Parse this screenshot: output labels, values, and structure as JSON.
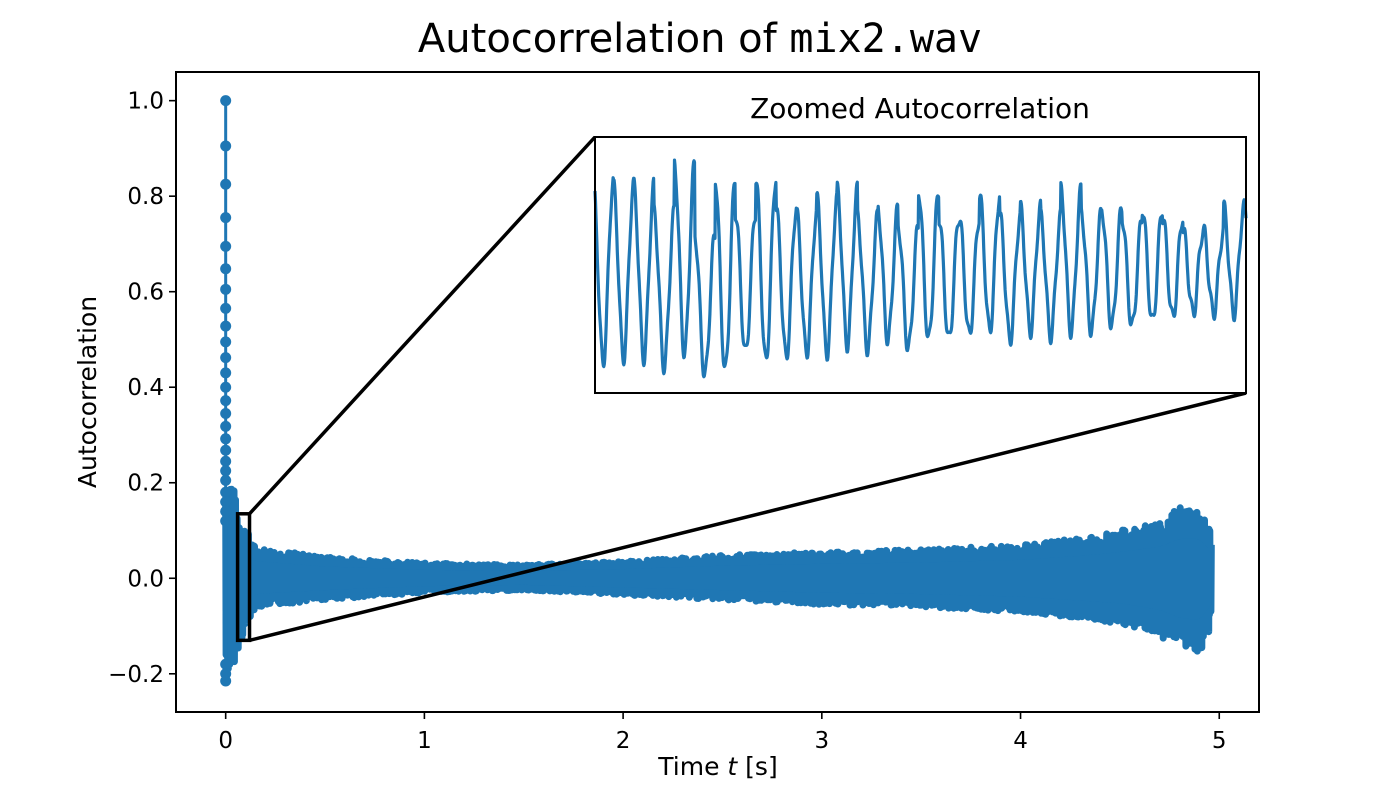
{
  "colors": {
    "series": "#1f77b4",
    "axis": "#000000",
    "background": "#ffffff"
  },
  "chart_data": [
    {
      "type": "line",
      "title_prefix": "Autocorrelation of ",
      "title_code": "mix2.wav",
      "xlabel_prefix": "Time ",
      "xlabel_var": "t",
      "xlabel_suffix": " [s]",
      "ylabel": "Autocorrelation",
      "xlim": [
        -0.25,
        5.2
      ],
      "ylim": [
        -0.28,
        1.06
      ],
      "xticks": [
        0,
        1,
        2,
        3,
        4,
        5
      ],
      "xtick_labels": [
        "0",
        "1",
        "2",
        "3",
        "4",
        "5"
      ],
      "yticks": [
        -0.2,
        0.0,
        0.2,
        0.4,
        0.6,
        0.8,
        1.0
      ],
      "ytick_labels": [
        "−0.2",
        "0.0",
        "0.2",
        "0.4",
        "0.6",
        "0.8",
        "1.0"
      ],
      "grid": false,
      "legend": "none",
      "marker": "circle",
      "series": [
        {
          "peak_points": [
            [
              0.0,
              1.0
            ],
            [
              0.0,
              0.905
            ],
            [
              0.0,
              0.825
            ],
            [
              0.0,
              0.755
            ],
            [
              0.0,
              0.695
            ],
            [
              0.0,
              0.648
            ],
            [
              0.0,
              0.605
            ],
            [
              0.0,
              0.565
            ],
            [
              0.0,
              0.528
            ],
            [
              0.0,
              0.495
            ],
            [
              0.0,
              0.462
            ],
            [
              0.0,
              0.43
            ],
            [
              0.0,
              0.4
            ],
            [
              0.0,
              0.372
            ],
            [
              0.0,
              0.345
            ],
            [
              0.0,
              0.318
            ],
            [
              0.0,
              0.292
            ],
            [
              0.0,
              0.268
            ],
            [
              0.0,
              0.245
            ],
            [
              0.0,
              0.225
            ],
            [
              0.0,
              0.205
            ],
            [
              0.0,
              0.18
            ],
            [
              0.0,
              0.16
            ],
            [
              0.0,
              0.14
            ],
            [
              0.0,
              0.12
            ],
            [
              0.0,
              -0.18
            ],
            [
              0.0,
              -0.2
            ],
            [
              0.0,
              -0.215
            ]
          ],
          "envelope": [
            {
              "t": 0.03,
              "hi": 0.22,
              "lo": -0.2
            },
            {
              "t": 0.06,
              "hi": 0.14,
              "lo": -0.15
            },
            {
              "t": 0.15,
              "hi": 0.065,
              "lo": -0.06
            },
            {
              "t": 0.5,
              "hi": 0.045,
              "lo": -0.045
            },
            {
              "t": 1.0,
              "hi": 0.032,
              "lo": -0.03
            },
            {
              "t": 1.5,
              "hi": 0.028,
              "lo": -0.025
            },
            {
              "t": 2.0,
              "hi": 0.035,
              "lo": -0.035
            },
            {
              "t": 2.5,
              "hi": 0.048,
              "lo": -0.045
            },
            {
              "t": 3.0,
              "hi": 0.055,
              "lo": -0.055
            },
            {
              "t": 3.5,
              "hi": 0.06,
              "lo": -0.06
            },
            {
              "t": 4.0,
              "hi": 0.07,
              "lo": -0.07
            },
            {
              "t": 4.3,
              "hi": 0.085,
              "lo": -0.085
            },
            {
              "t": 4.5,
              "hi": 0.1,
              "lo": -0.095
            },
            {
              "t": 4.7,
              "hi": 0.12,
              "lo": -0.12
            },
            {
              "t": 4.8,
              "hi": 0.15,
              "lo": -0.15
            },
            {
              "t": 4.9,
              "hi": 0.15,
              "lo": -0.16
            },
            {
              "t": 4.96,
              "hi": 0.1,
              "lo": -0.1
            }
          ]
        }
      ],
      "zoom_region": {
        "x": [
          0.06,
          0.12
        ],
        "y": [
          -0.13,
          0.135
        ]
      }
    },
    {
      "type": "line",
      "title": "Zoomed Autocorrelation",
      "x": [
        0.06,
        0.12
      ],
      "grid": false,
      "axes_ticks": false,
      "peaks": [
        0.86,
        0.85,
        0.85,
        0.79,
        0.9,
        0.74,
        0.87,
        0.79,
        0.87,
        0.8,
        0.79,
        0.82,
        0.84,
        0.78,
        0.8,
        0.76,
        0.84,
        0.78,
        0.78,
        0.83,
        0.78,
        0.8,
        0.78,
        0.84,
        0.79,
        0.8,
        0.78,
        0.8,
        0.78,
        0.75,
        0.75,
        0.8
      ],
      "troughs": [
        0.45,
        0.46,
        0.46,
        0.44,
        0.47,
        0.42,
        0.43,
        0.47,
        0.45,
        0.46,
        0.47,
        0.47,
        0.49,
        0.48,
        0.5,
        0.48,
        0.5,
        0.5,
        0.51,
        0.52,
        0.5,
        0.52,
        0.51,
        0.52,
        0.52,
        0.53,
        0.53,
        0.54,
        0.55,
        0.56,
        0.56
      ]
    }
  ]
}
